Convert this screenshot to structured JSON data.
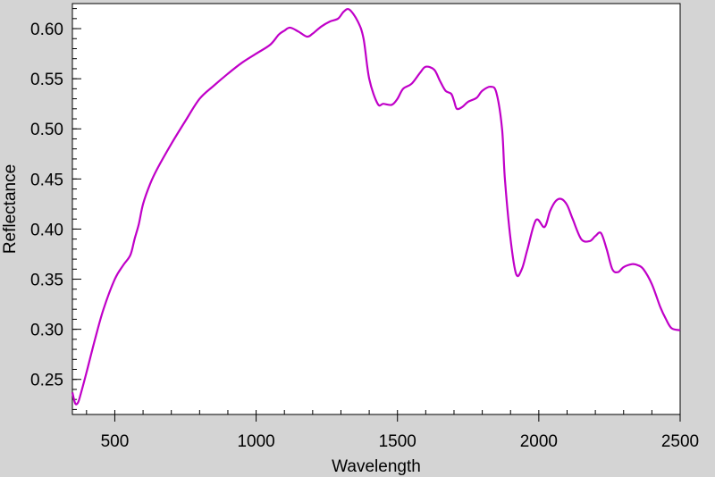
{
  "chart_data": {
    "type": "line",
    "title": "",
    "xlabel": "Wavelength",
    "ylabel": "Reflectance",
    "xlim": [
      350,
      2500
    ],
    "ylim": [
      0.215,
      0.625
    ],
    "x_ticks": [
      500,
      1000,
      1500,
      2000,
      2500
    ],
    "x_tick_labels": [
      "500",
      "1000",
      "1500",
      "2000",
      "2500"
    ],
    "y_ticks": [
      0.25,
      0.3,
      0.35,
      0.4,
      0.45,
      0.5,
      0.55,
      0.6
    ],
    "y_tick_labels": [
      "0.25",
      "0.30",
      "0.35",
      "0.40",
      "0.45",
      "0.50",
      "0.55",
      "0.60"
    ],
    "grid": false,
    "series": [
      {
        "color": "#c000c8",
        "x": [
          350,
          360,
          370,
          380,
          400,
          430,
          460,
          500,
          530,
          555,
          570,
          585,
          600,
          625,
          650,
          700,
          750,
          800,
          850,
          900,
          950,
          1000,
          1050,
          1080,
          1100,
          1120,
          1150,
          1180,
          1200,
          1230,
          1260,
          1290,
          1310,
          1330,
          1360,
          1380,
          1400,
          1430,
          1450,
          1480,
          1500,
          1520,
          1550,
          1580,
          1600,
          1630,
          1650,
          1670,
          1690,
          1700,
          1710,
          1730,
          1750,
          1780,
          1800,
          1830,
          1850,
          1870,
          1880,
          1900,
          1920,
          1940,
          1960,
          1990,
          2020,
          2040,
          2060,
          2080,
          2100,
          2120,
          2150,
          2180,
          2200,
          2220,
          2240,
          2260,
          2280,
          2300,
          2330,
          2350,
          2370,
          2400,
          2430,
          2450,
          2470,
          2500
        ],
        "y": [
          0.237,
          0.226,
          0.227,
          0.236,
          0.257,
          0.29,
          0.32,
          0.35,
          0.364,
          0.374,
          0.39,
          0.405,
          0.425,
          0.445,
          0.46,
          0.485,
          0.508,
          0.53,
          0.543,
          0.555,
          0.566,
          0.575,
          0.584,
          0.594,
          0.598,
          0.601,
          0.597,
          0.592,
          0.595,
          0.602,
          0.607,
          0.61,
          0.617,
          0.619,
          0.607,
          0.59,
          0.55,
          0.525,
          0.525,
          0.524,
          0.53,
          0.54,
          0.545,
          0.556,
          0.562,
          0.559,
          0.548,
          0.538,
          0.535,
          0.528,
          0.52,
          0.522,
          0.527,
          0.531,
          0.538,
          0.542,
          0.536,
          0.5,
          0.45,
          0.39,
          0.355,
          0.36,
          0.38,
          0.409,
          0.402,
          0.418,
          0.428,
          0.43,
          0.424,
          0.41,
          0.39,
          0.388,
          0.393,
          0.396,
          0.38,
          0.36,
          0.357,
          0.362,
          0.365,
          0.364,
          0.36,
          0.345,
          0.322,
          0.31,
          0.301,
          0.299
        ]
      }
    ]
  }
}
